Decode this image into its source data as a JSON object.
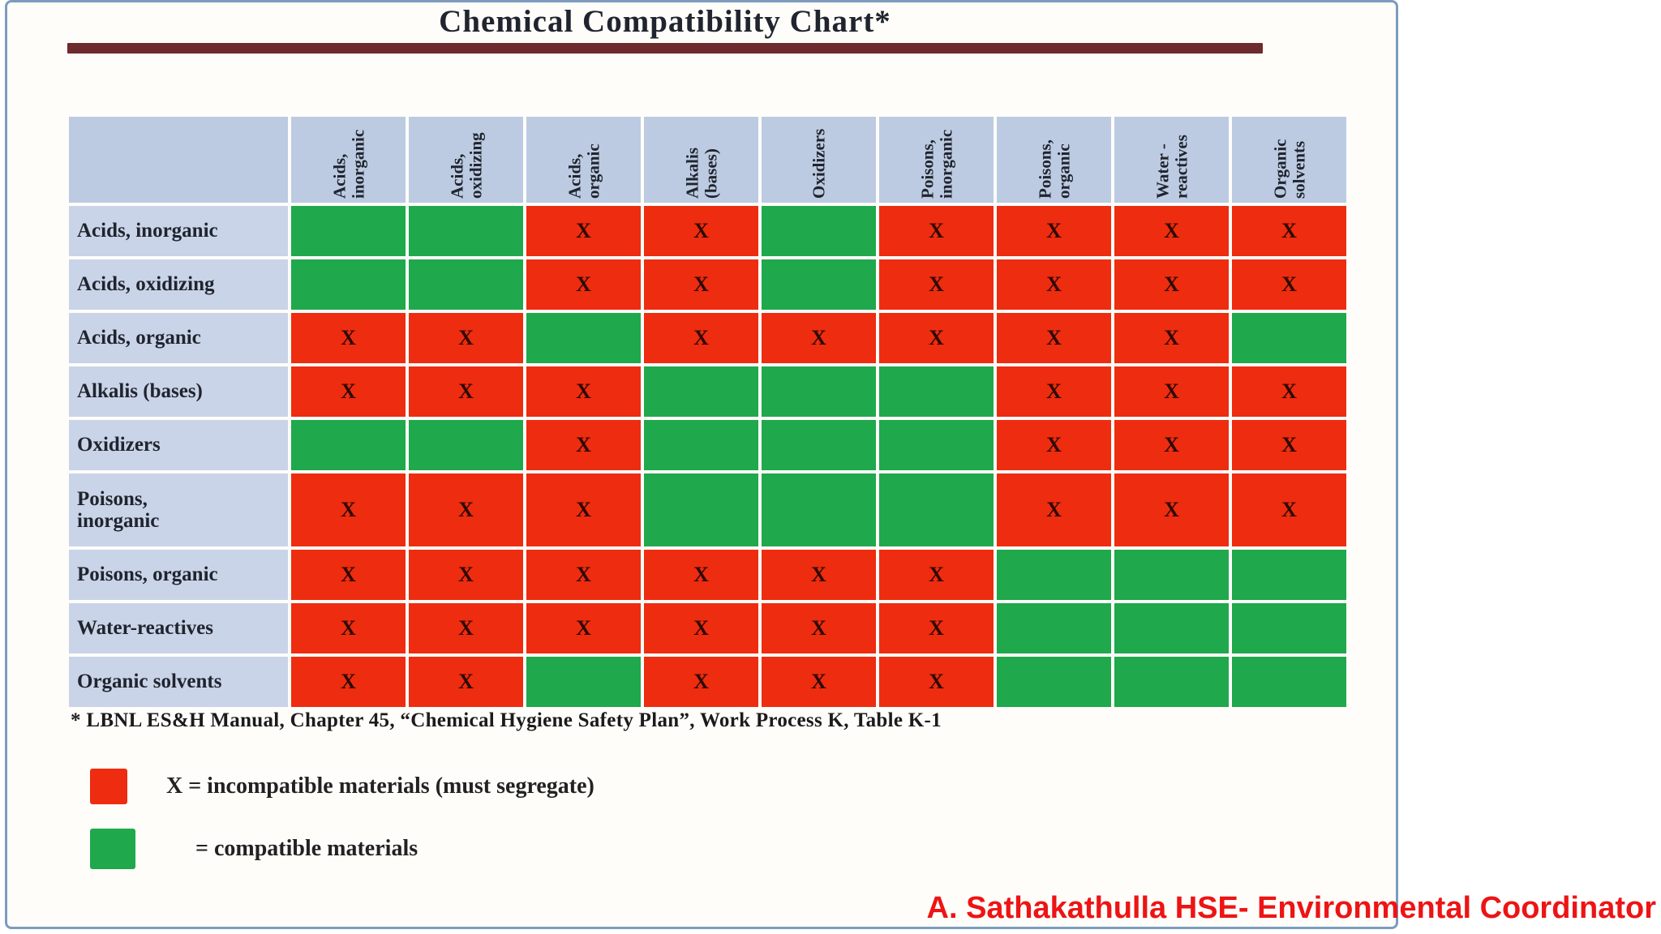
{
  "chart_data": {
    "type": "heatmap",
    "title": "Chemical Compatibility Chart*",
    "col_labels": [
      "Acids,\ninorganic",
      "Acids,\noxidizing",
      "Acids,\norganic",
      "Alkalis\n(bases)",
      "Oxidizers",
      "Poisons,\ninorganic",
      "Poisons,\norganic",
      "Water -\nreactives",
      "Organic\nsolvents"
    ],
    "row_labels": [
      "Acids, inorganic",
      "Acids, oxidizing",
      "Acids, organic",
      "Alkalis (bases)",
      "Oxidizers",
      "Poisons,\ninorganic",
      "Poisons, organic",
      "Water-reactives",
      "Organic solvents"
    ],
    "cell_values": [
      [
        "",
        "",
        "X",
        "X",
        "",
        "X",
        "X",
        "X",
        "X"
      ],
      [
        "",
        "",
        "X",
        "X",
        "",
        "X",
        "X",
        "X",
        "X"
      ],
      [
        "X",
        "X",
        "",
        "X",
        "X",
        "X",
        "X",
        "X",
        ""
      ],
      [
        "X",
        "X",
        "X",
        "",
        "",
        "",
        "X",
        "X",
        "X"
      ],
      [
        "",
        "",
        "X",
        "",
        "",
        "",
        "X",
        "X",
        "X"
      ],
      [
        "X",
        "X",
        "X",
        "",
        "",
        "",
        "X",
        "X",
        "X"
      ],
      [
        "X",
        "X",
        "X",
        "X",
        "X",
        "X",
        "",
        "",
        ""
      ],
      [
        "X",
        "X",
        "X",
        "X",
        "X",
        "X",
        "",
        "",
        ""
      ],
      [
        "X",
        "X",
        "",
        "X",
        "X",
        "X",
        "",
        "",
        ""
      ]
    ],
    "value_meaning": {
      "X": "incompatible materials (must segregate)",
      "": "compatible materials"
    },
    "legend_position": "bottom-left",
    "grid": "white gaps between cells"
  },
  "footnote": "* LBNL ES&H Manual, Chapter 45, “Chemical Hygiene Safety Plan”, Work Process K, Table K-1",
  "legend": {
    "incompatible": {
      "label": "X = incompatible materials (must segregate)",
      "swatch": "red-square"
    },
    "compatible": {
      "label": "= compatible materials",
      "swatch": "green-square"
    }
  },
  "credit": "A. Sathakathulla HSE- Environmental Coordinator",
  "colors": {
    "red": "#ee2c10",
    "green": "#1fa84c",
    "header_bg": "#bccbe2",
    "label_bg": "#c9d4e8",
    "bar": "#6e2b2d",
    "frame": "#7b9cbd",
    "credit_red": "#ed1414",
    "x_ink": "#2d0a02",
    "ink": "#20242e"
  }
}
